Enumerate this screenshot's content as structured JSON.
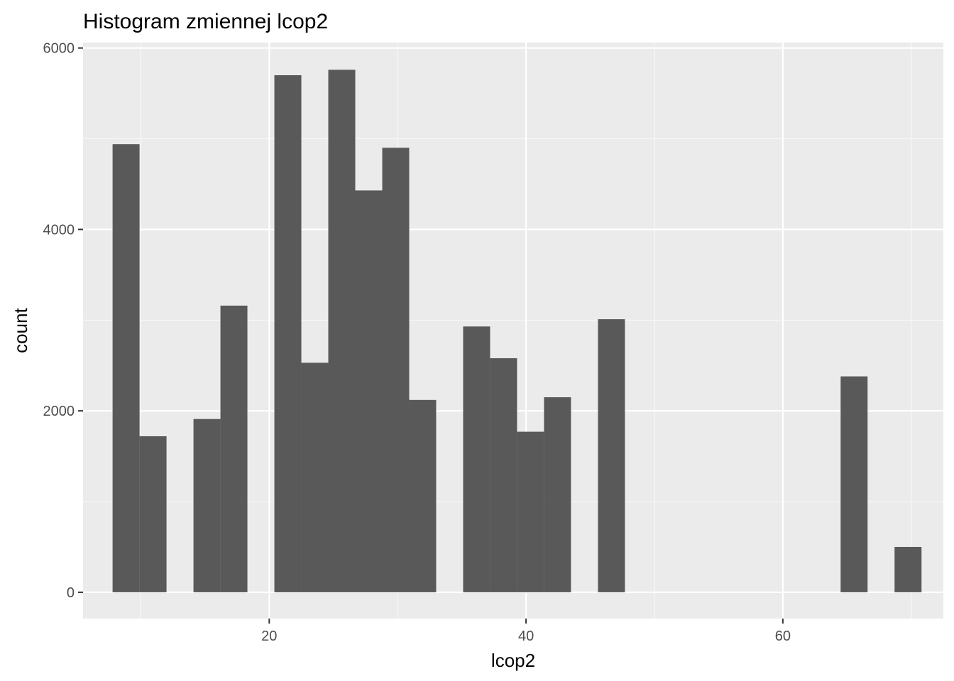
{
  "chart_data": {
    "type": "bar",
    "title": "Histogram zmiennej  lcop2",
    "xlabel": "lcop2",
    "ylabel": "count",
    "xlim": [
      5.5,
      72.5
    ],
    "ylim": [
      -290,
      6060
    ],
    "x_ticks": [
      20,
      40,
      60
    ],
    "x_tick_labels": [
      "20",
      "40",
      "60"
    ],
    "x_minor_ticks": [
      10,
      30,
      50,
      70
    ],
    "y_ticks": [
      0,
      2000,
      4000,
      6000
    ],
    "y_tick_labels": [
      "0",
      "2000",
      "4000",
      "6000"
    ],
    "y_minor_ticks": [
      1000,
      3000,
      5000
    ],
    "grid": true,
    "bin_width": 2.1,
    "bins": [
      {
        "x0": 7.8,
        "x1": 9.9,
        "count": 4940
      },
      {
        "x0": 9.9,
        "x1": 12.0,
        "count": 1720
      },
      {
        "x0": 14.1,
        "x1": 16.2,
        "count": 1910
      },
      {
        "x0": 16.2,
        "x1": 18.3,
        "count": 3160
      },
      {
        "x0": 20.4,
        "x1": 22.5,
        "count": 5700
      },
      {
        "x0": 22.5,
        "x1": 24.6,
        "count": 2530
      },
      {
        "x0": 24.6,
        "x1": 26.7,
        "count": 5760
      },
      {
        "x0": 26.7,
        "x1": 28.8,
        "count": 4430
      },
      {
        "x0": 28.8,
        "x1": 30.9,
        "count": 4900
      },
      {
        "x0": 30.9,
        "x1": 33.0,
        "count": 2120
      },
      {
        "x0": 35.1,
        "x1": 37.2,
        "count": 2930
      },
      {
        "x0": 37.2,
        "x1": 39.3,
        "count": 2580
      },
      {
        "x0": 39.3,
        "x1": 41.4,
        "count": 1770
      },
      {
        "x0": 41.4,
        "x1": 43.5,
        "count": 2150
      },
      {
        "x0": 45.6,
        "x1": 47.7,
        "count": 3010
      },
      {
        "x0": 64.5,
        "x1": 66.6,
        "count": 2380
      },
      {
        "x0": 68.7,
        "x1": 70.8,
        "count": 500
      }
    ],
    "colors": {
      "panel": "#ebebeb",
      "grid_major": "#ffffff",
      "grid_minor": "#f7f7f7",
      "bar": "#595959",
      "tick": "#333333"
    }
  }
}
